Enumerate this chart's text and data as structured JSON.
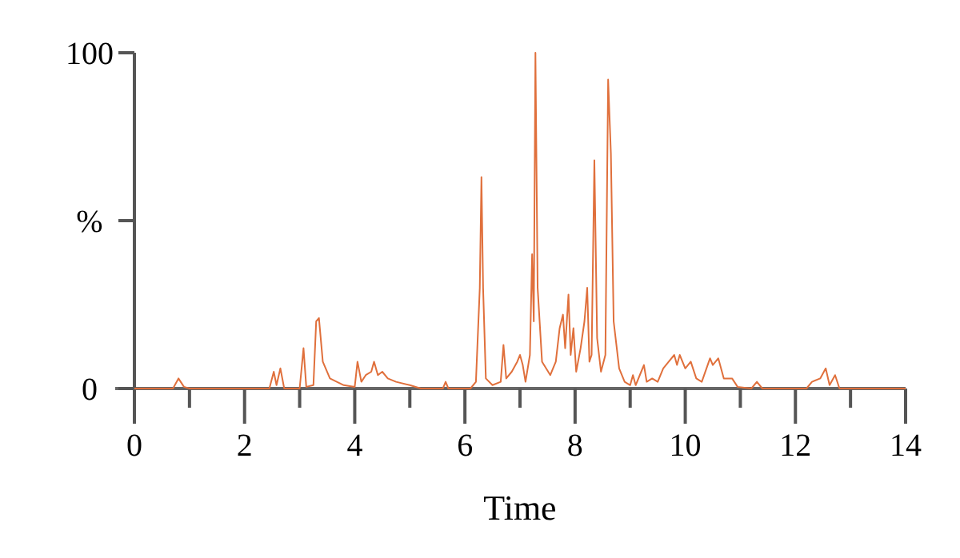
{
  "chart_data": {
    "type": "line",
    "xlabel": "Time",
    "xlim": [
      0,
      14
    ],
    "xticks": [
      0,
      {
        "value": 1,
        "label": null
      },
      2,
      {
        "value": 3,
        "label": null
      },
      4,
      {
        "value": 5,
        "label": null
      },
      6,
      {
        "value": 7,
        "label": null
      },
      8,
      {
        "value": 9,
        "label": null
      },
      10,
      {
        "value": 11,
        "label": null
      },
      12,
      {
        "value": 13,
        "label": null
      },
      14
    ],
    "ylim": [
      0,
      100
    ],
    "yticks": [
      0,
      {
        "value": 50,
        "label": "%"
      },
      100
    ],
    "grid": false,
    "marker": "none",
    "line_style": "solid",
    "series": [
      {
        "color": "#e0703c",
        "x": [
          0,
          0.7,
          0.8,
          0.9,
          1.0,
          2.45,
          2.53,
          2.58,
          2.65,
          2.72,
          3.0,
          3.07,
          3.12,
          3.25,
          3.3,
          3.35,
          3.42,
          3.55,
          3.8,
          4.0,
          4.05,
          4.12,
          4.2,
          4.3,
          4.35,
          4.42,
          4.5,
          4.6,
          4.75,
          5.0,
          5.2,
          5.6,
          5.65,
          5.7,
          6.1,
          6.2,
          6.27,
          6.3,
          6.33,
          6.38,
          6.5,
          6.65,
          6.7,
          6.75,
          6.85,
          6.95,
          7.0,
          7.05,
          7.1,
          7.18,
          7.22,
          7.25,
          7.28,
          7.32,
          7.4,
          7.55,
          7.65,
          7.72,
          7.78,
          7.82,
          7.88,
          7.92,
          7.97,
          8.02,
          8.1,
          8.17,
          8.22,
          8.26,
          8.3,
          8.35,
          8.4,
          8.47,
          8.55,
          8.6,
          8.65,
          8.7,
          8.8,
          8.9,
          9.0,
          9.05,
          9.1,
          9.2,
          9.25,
          9.3,
          9.4,
          9.5,
          9.6,
          9.7,
          9.8,
          9.85,
          9.9,
          10.0,
          10.1,
          10.2,
          10.3,
          10.45,
          10.5,
          10.6,
          10.7,
          10.85,
          10.95,
          11.2,
          11.3,
          11.4,
          12.2,
          12.3,
          12.45,
          12.55,
          12.62,
          12.72,
          12.8,
          14
        ],
        "values": [
          0,
          0,
          3,
          0.5,
          0,
          0,
          5,
          1,
          6,
          0,
          0,
          12,
          0.5,
          1,
          20,
          21,
          8,
          3,
          1,
          0.5,
          8,
          2,
          4,
          5,
          8,
          4,
          5,
          3,
          2,
          1,
          0,
          0,
          2,
          0,
          0,
          2,
          30,
          63,
          30,
          3,
          1,
          2,
          13,
          3,
          5,
          8,
          10,
          7,
          2,
          10,
          40,
          20,
          100,
          30,
          8,
          4,
          8,
          18,
          22,
          12,
          28,
          10,
          18,
          5,
          12,
          20,
          30,
          8,
          10,
          68,
          15,
          5,
          10,
          92,
          70,
          20,
          6,
          2,
          1,
          4,
          1,
          5,
          7,
          2,
          3,
          2,
          6,
          8,
          10,
          7,
          10,
          6,
          8,
          3,
          2,
          9,
          7,
          9,
          3,
          3,
          0.5,
          0,
          2,
          0,
          0,
          2,
          3,
          6,
          1,
          4,
          0,
          0
        ]
      }
    ]
  }
}
